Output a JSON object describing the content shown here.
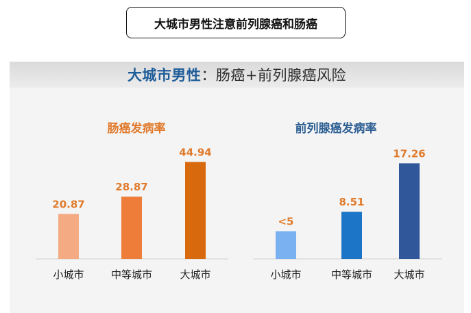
{
  "slide_title": "大城市男性注意前列腺癌和肠癌",
  "panel": {
    "title_highlight": "大城市男性",
    "title_rest": "：肠癌+前列腺癌风险"
  },
  "chart_data": [
    {
      "type": "bar",
      "title": "肠癌发病率",
      "title_color": "#e07a2b",
      "categories": [
        "小城市",
        "中等城市",
        "大城市"
      ],
      "values": [
        20.87,
        28.87,
        44.94
      ],
      "labels": [
        "20.87",
        "28.87",
        "44.94"
      ],
      "label_color": "#e07a2b",
      "colors": [
        "#f4ab84",
        "#ee7d3a",
        "#d9690d"
      ],
      "ylim": [
        0,
        47
      ]
    },
    {
      "type": "bar",
      "title": "前列腺癌发病率",
      "title_color": "#2e5f93",
      "categories": [
        "小城市",
        "中等城市",
        "大城市"
      ],
      "values": [
        5,
        8.51,
        17.26
      ],
      "labels": [
        "<5",
        "8.51",
        "17.26"
      ],
      "label_color": "#e07a2b",
      "colors": [
        "#7ab2f1",
        "#1c75c6",
        "#2f579a"
      ],
      "ylim": [
        0,
        18.3
      ]
    }
  ]
}
